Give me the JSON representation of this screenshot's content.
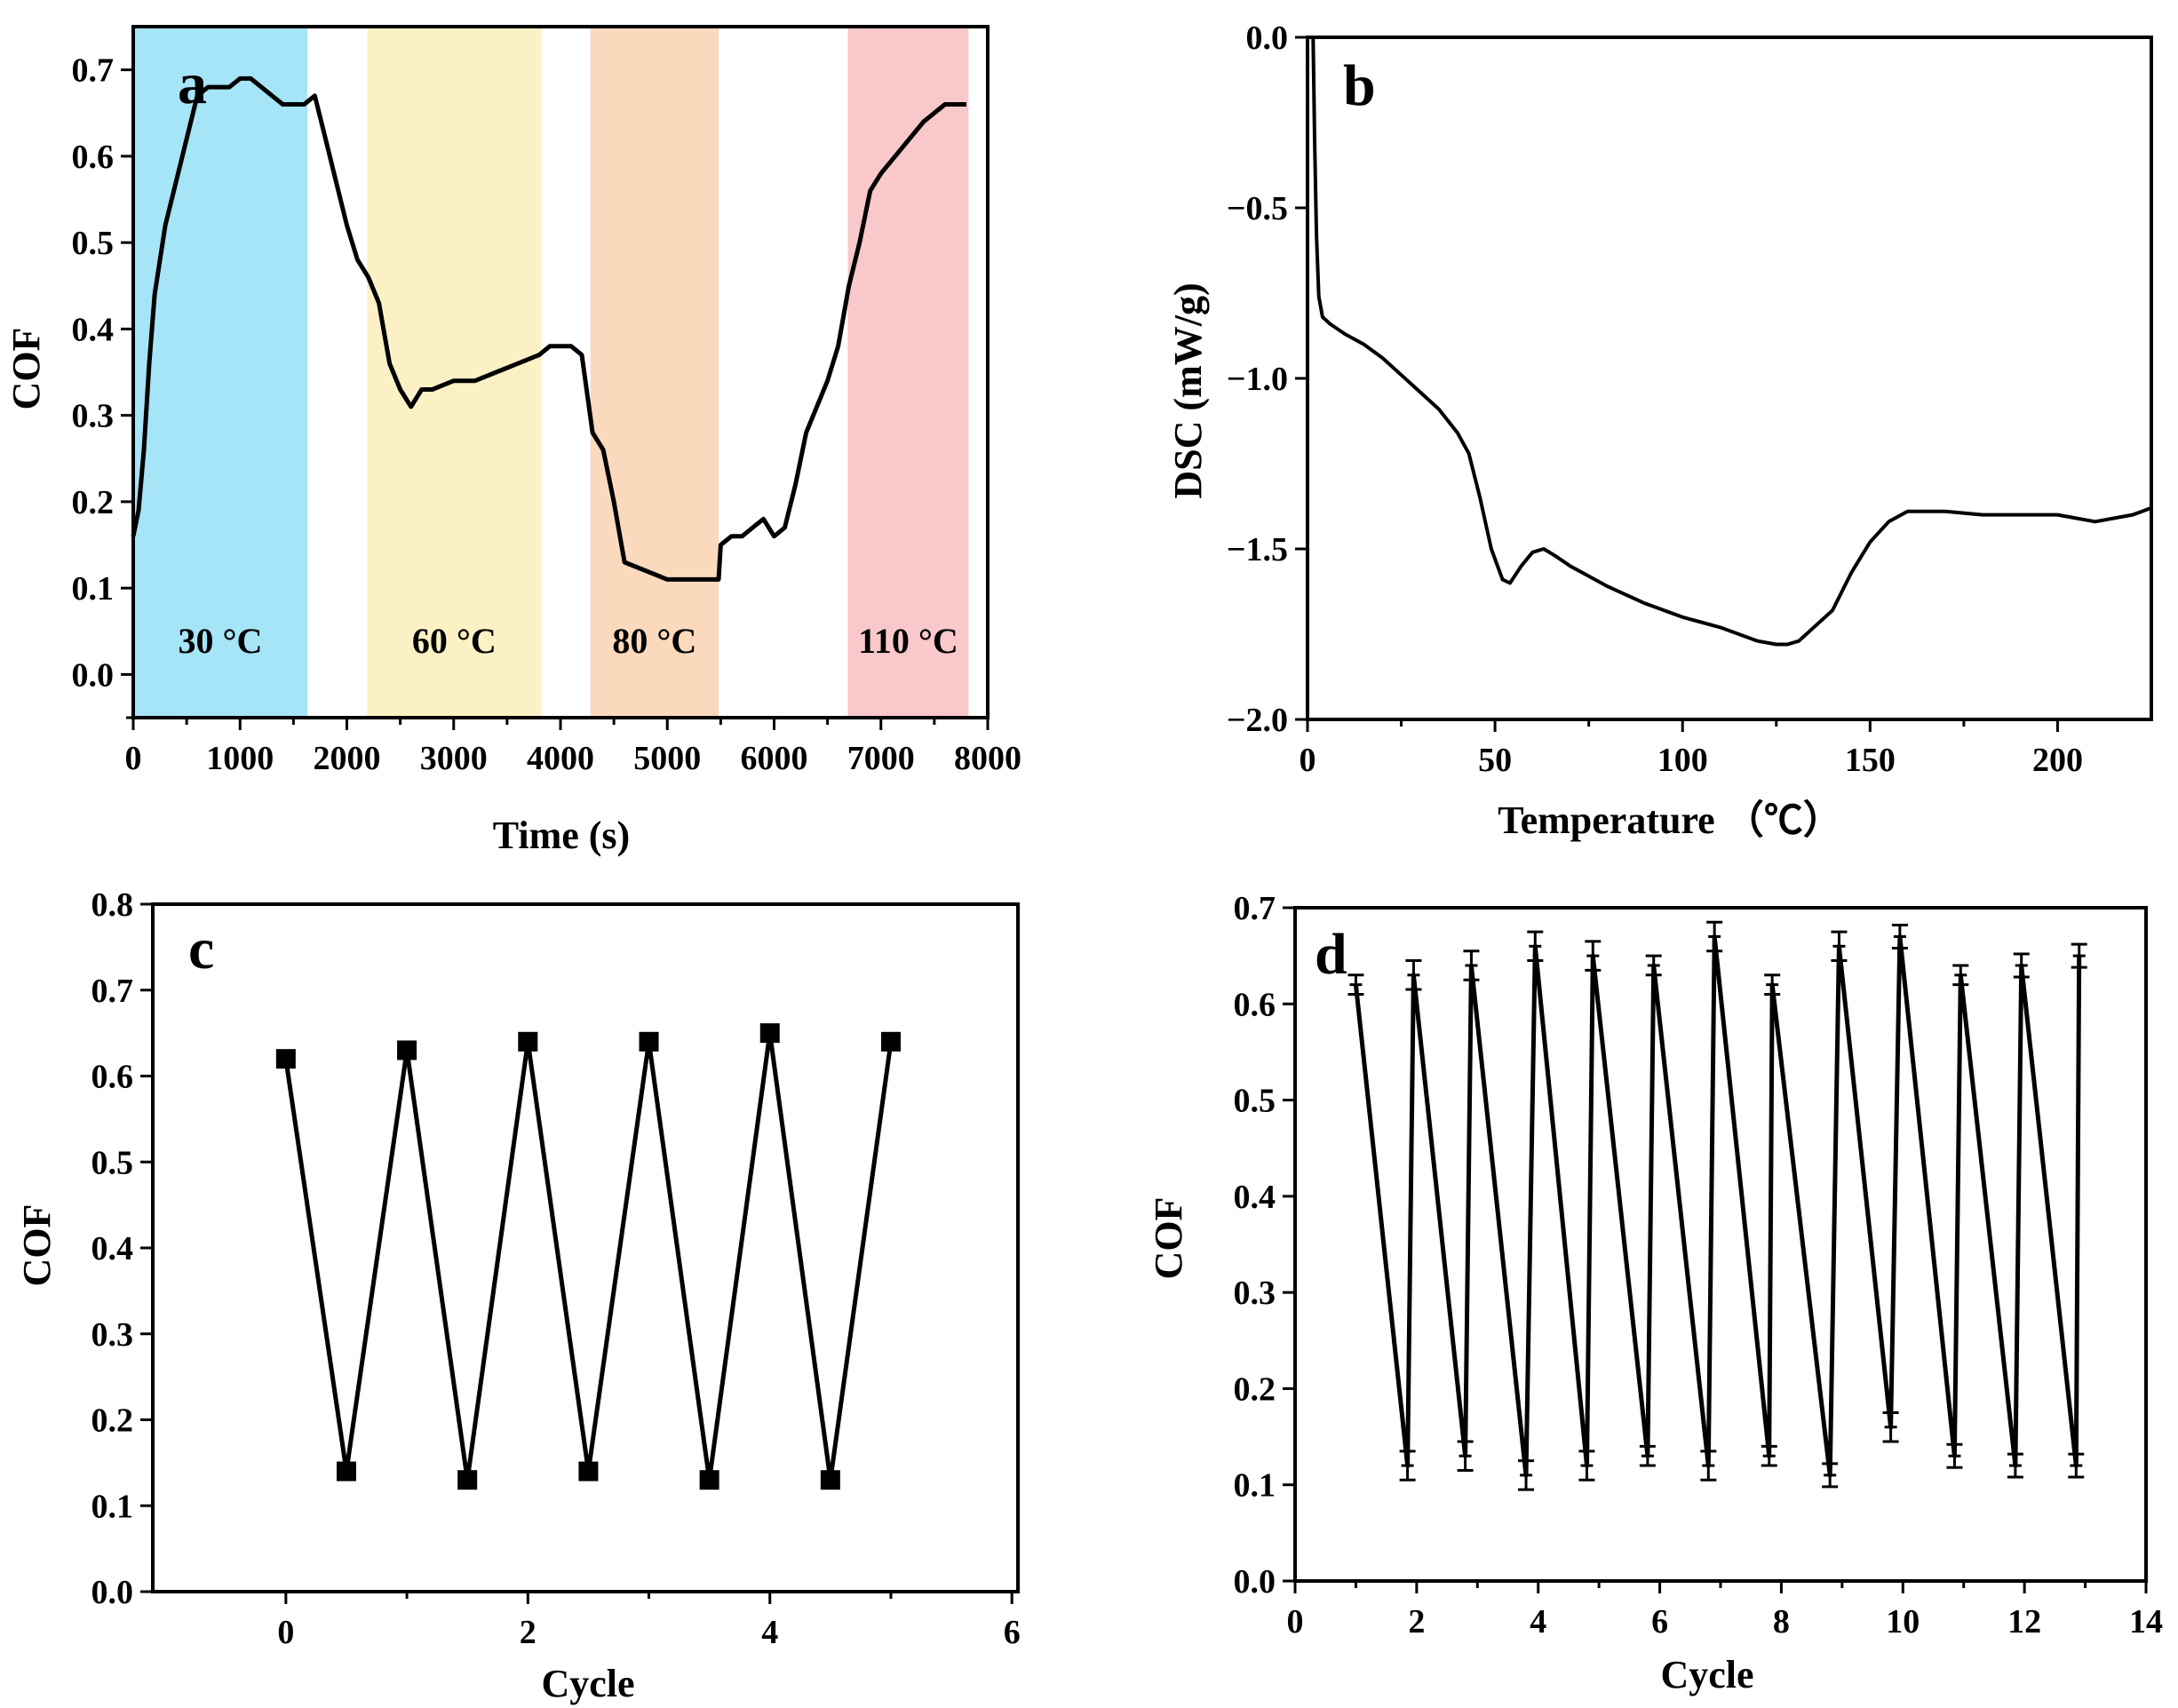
{
  "chart_data": [
    {
      "id": "a",
      "type": "line",
      "panel_label": "a",
      "xlabel": "Time (s)",
      "ylabel": "COF",
      "xlim": [
        0,
        8000
      ],
      "ylim": [
        -0.05,
        0.75
      ],
      "x_ticks": [
        0,
        1000,
        2000,
        3000,
        4000,
        5000,
        6000,
        7000,
        8000
      ],
      "y_ticks": [
        0.0,
        0.1,
        0.2,
        0.3,
        0.4,
        0.5,
        0.6,
        0.7
      ],
      "bands": [
        {
          "from": 0,
          "to": 1630,
          "label": "30 °C",
          "color": "#a6e4f7"
        },
        {
          "from": 2190,
          "to": 3820,
          "label": "60 °C",
          "color": "#fbf1c4"
        },
        {
          "from": 4280,
          "to": 5480,
          "label": "80 °C",
          "color": "#fad9bd"
        },
        {
          "from": 6690,
          "to": 7820,
          "label": "110 °C",
          "color": "#f9c8ca"
        }
      ],
      "series": [
        {
          "name": "COF",
          "x": [
            0,
            50,
            100,
            150,
            200,
            300,
            400,
            500,
            600,
            700,
            800,
            900,
            1000,
            1100,
            1200,
            1300,
            1400,
            1500,
            1600,
            1700,
            1800,
            1900,
            2000,
            2100,
            2200,
            2300,
            2400,
            2500,
            2600,
            2700,
            2800,
            3000,
            3200,
            3400,
            3600,
            3800,
            3900,
            4000,
            4100,
            4200,
            4300,
            4400,
            4500,
            4600,
            4800,
            5000,
            5200,
            5400,
            5480,
            5500,
            5600,
            5700,
            5800,
            5900,
            6000,
            6100,
            6200,
            6300,
            6400,
            6500,
            6600,
            6700,
            6800,
            6900,
            7000,
            7200,
            7400,
            7600,
            7800
          ],
          "y": [
            0.16,
            0.19,
            0.26,
            0.36,
            0.44,
            0.52,
            0.57,
            0.62,
            0.67,
            0.68,
            0.68,
            0.68,
            0.69,
            0.69,
            0.68,
            0.67,
            0.66,
            0.66,
            0.66,
            0.67,
            0.62,
            0.57,
            0.52,
            0.48,
            0.46,
            0.43,
            0.36,
            0.33,
            0.31,
            0.33,
            0.33,
            0.34,
            0.34,
            0.35,
            0.36,
            0.37,
            0.38,
            0.38,
            0.38,
            0.37,
            0.28,
            0.26,
            0.2,
            0.13,
            0.12,
            0.11,
            0.11,
            0.11,
            0.11,
            0.15,
            0.16,
            0.16,
            0.17,
            0.18,
            0.16,
            0.17,
            0.22,
            0.28,
            0.31,
            0.34,
            0.38,
            0.45,
            0.5,
            0.56,
            0.58,
            0.61,
            0.64,
            0.66,
            0.66
          ]
        }
      ]
    },
    {
      "id": "b",
      "type": "line",
      "panel_label": "b",
      "xlabel": "Temperature （℃）",
      "ylabel": "DSC (mW/g)",
      "xlim": [
        0,
        225
      ],
      "ylim": [
        -2.0,
        0.0
      ],
      "x_ticks": [
        0,
        50,
        100,
        150,
        200
      ],
      "y_ticks": [
        0.0,
        -0.5,
        -1.0,
        -1.5,
        -2.0
      ],
      "series": [
        {
          "name": "DSC",
          "x": [
            1.5,
            1.9,
            2.4,
            3.0,
            4,
            6,
            10,
            15,
            20,
            25,
            30,
            35,
            40,
            43,
            46,
            49,
            52,
            54,
            57,
            60,
            63,
            66,
            70,
            80,
            90,
            100,
            110,
            115,
            120,
            125,
            128,
            131,
            135,
            140,
            145,
            150,
            155,
            160,
            170,
            180,
            190,
            200,
            210,
            220,
            225
          ],
          "y": [
            0.0,
            -0.3,
            -0.58,
            -0.76,
            -0.82,
            -0.84,
            -0.87,
            -0.9,
            -0.94,
            -0.99,
            -1.04,
            -1.09,
            -1.16,
            -1.22,
            -1.35,
            -1.5,
            -1.59,
            -1.6,
            -1.55,
            -1.51,
            -1.5,
            -1.52,
            -1.55,
            -1.61,
            -1.66,
            -1.7,
            -1.73,
            -1.75,
            -1.77,
            -1.78,
            -1.78,
            -1.77,
            -1.73,
            -1.68,
            -1.57,
            -1.48,
            -1.42,
            -1.39,
            -1.39,
            -1.4,
            -1.4,
            -1.4,
            -1.42,
            -1.4,
            -1.38
          ]
        }
      ]
    },
    {
      "id": "c",
      "type": "line",
      "panel_label": "c",
      "xlabel": "Cycle",
      "ylabel": "COF",
      "xlim": [
        -1.1,
        6.05
      ],
      "ylim": [
        0.0,
        0.8
      ],
      "x_ticks": [
        0,
        2,
        4,
        6
      ],
      "y_ticks": [
        0.0,
        0.1,
        0.2,
        0.3,
        0.4,
        0.5,
        0.6,
        0.7,
        0.8
      ],
      "series": [
        {
          "name": "COF",
          "x": [
            0,
            0.5,
            1,
            1.5,
            2,
            2.5,
            3,
            3.5,
            4,
            4.5,
            5
          ],
          "y": [
            0.62,
            0.14,
            0.63,
            0.13,
            0.64,
            0.14,
            0.64,
            0.13,
            0.65,
            0.13,
            0.64
          ]
        }
      ]
    },
    {
      "id": "d",
      "type": "line",
      "panel_label": "d",
      "xlabel": "Cycle",
      "ylabel": "COF",
      "xlim": [
        0,
        14
      ],
      "ylim": [
        0.0,
        0.7
      ],
      "x_ticks": [
        0,
        2,
        4,
        6,
        8,
        10,
        12,
        14
      ],
      "y_ticks": [
        0.0,
        0.1,
        0.2,
        0.3,
        0.4,
        0.5,
        0.6,
        0.7
      ],
      "series": [
        {
          "name": "COF",
          "x": [
            1,
            1.85,
            1.95,
            2.8,
            2.9,
            3.8,
            3.95,
            4.8,
            4.9,
            5.8,
            5.9,
            6.8,
            6.9,
            7.8,
            7.85,
            8.8,
            8.95,
            9.8,
            9.95,
            10.85,
            10.95,
            11.85,
            11.95,
            12.85,
            12.9
          ],
          "y": [
            0.62,
            0.12,
            0.63,
            0.13,
            0.64,
            0.11,
            0.66,
            0.12,
            0.65,
            0.13,
            0.64,
            0.12,
            0.67,
            0.13,
            0.62,
            0.11,
            0.66,
            0.16,
            0.67,
            0.13,
            0.63,
            0.12,
            0.64,
            0.12,
            0.65
          ],
          "err": [
            0.01,
            0.015,
            0.015,
            0.015,
            0.015,
            0.015,
            0.015,
            0.015,
            0.015,
            0.01,
            0.01,
            0.015,
            0.015,
            0.01,
            0.01,
            0.012,
            0.015,
            0.015,
            0.012,
            0.012,
            0.01,
            0.012,
            0.012,
            0.012,
            0.012
          ]
        }
      ]
    }
  ]
}
